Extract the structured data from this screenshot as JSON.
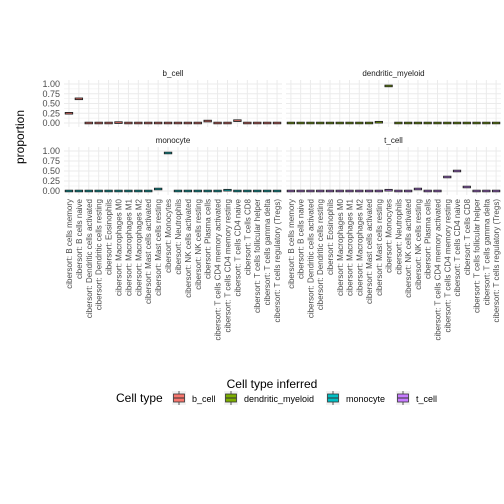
{
  "chart_data": {
    "type": "boxplot",
    "grid": true,
    "legend_position": "bottom",
    "ylabel": "proportion",
    "xlabel": "Cell type inferred",
    "ylim": [
      0,
      1
    ],
    "yticks": [
      "0.00",
      "0.25",
      "0.50",
      "0.75",
      "1.00"
    ],
    "categories": [
      "cibersort: B cells memory",
      "cibersort: B cells naive",
      "cibersort: Dendritic cells activated",
      "cibersort: Dendritic cells resting",
      "cibersort: Eosinophils",
      "cibersort: Macrophages M0",
      "cibersort: Macrophages M1",
      "cibersort: Macrophages M2",
      "cibersort: Mast cells activated",
      "cibersort: Mast cells resting",
      "cibersort: Monocytes",
      "cibersort: Neutrophils",
      "cibersort: NK cells activated",
      "cibersort: NK cells resting",
      "cibersort: Plasma cells",
      "cibersort: T cells CD4 memory activated",
      "cibersort: T cells CD4 memory resting",
      "cibersort: T cells CD4 naive",
      "cibersort: T cells CD8",
      "cibersort: T cells follicular helper",
      "cibersort: T cells gamma delta",
      "cibersort: T cells regulatory (Tregs)"
    ],
    "legend": {
      "title": "Cell type",
      "items": [
        {
          "label": "b_cell",
          "color": "#F8766D"
        },
        {
          "label": "dendritic_myeloid",
          "color": "#7CAE00"
        },
        {
          "label": "monocyte",
          "color": "#00BFC4"
        },
        {
          "label": "t_cell",
          "color": "#C77CFF"
        }
      ]
    },
    "panels": [
      {
        "title": "b_cell",
        "color": "#F8766D",
        "values": [
          0.25,
          0.62,
          0.0,
          0.0,
          0.0,
          0.01,
          0.0,
          0.0,
          0.0,
          0.0,
          0.0,
          0.0,
          0.0,
          0.0,
          0.05,
          0.0,
          0.0,
          0.06,
          0.0,
          0.0,
          0.0,
          0.0
        ]
      },
      {
        "title": "dendritic_myeloid",
        "color": "#7CAE00",
        "values": [
          0.0,
          0.0,
          0.0,
          0.0,
          0.0,
          0.0,
          0.0,
          0.0,
          0.0,
          0.02,
          0.95,
          0.0,
          0.0,
          0.0,
          0.0,
          0.0,
          0.0,
          0.0,
          0.0,
          0.0,
          0.0,
          0.0
        ]
      },
      {
        "title": "monocyte",
        "color": "#00BFC4",
        "values": [
          0.0,
          0.0,
          0.0,
          0.0,
          0.0,
          0.0,
          0.0,
          0.0,
          0.0,
          0.05,
          0.95,
          0.0,
          0.0,
          0.0,
          0.0,
          0.0,
          0.02,
          0.0,
          0.0,
          0.0,
          0.0,
          0.0
        ]
      },
      {
        "title": "t_cell",
        "color": "#C77CFF",
        "values": [
          0.0,
          0.0,
          0.0,
          0.0,
          0.0,
          0.0,
          0.0,
          0.0,
          0.0,
          0.0,
          0.02,
          0.0,
          0.0,
          0.05,
          0.0,
          0.0,
          0.35,
          0.5,
          0.1,
          0.0,
          0.0,
          0.0
        ]
      }
    ]
  }
}
